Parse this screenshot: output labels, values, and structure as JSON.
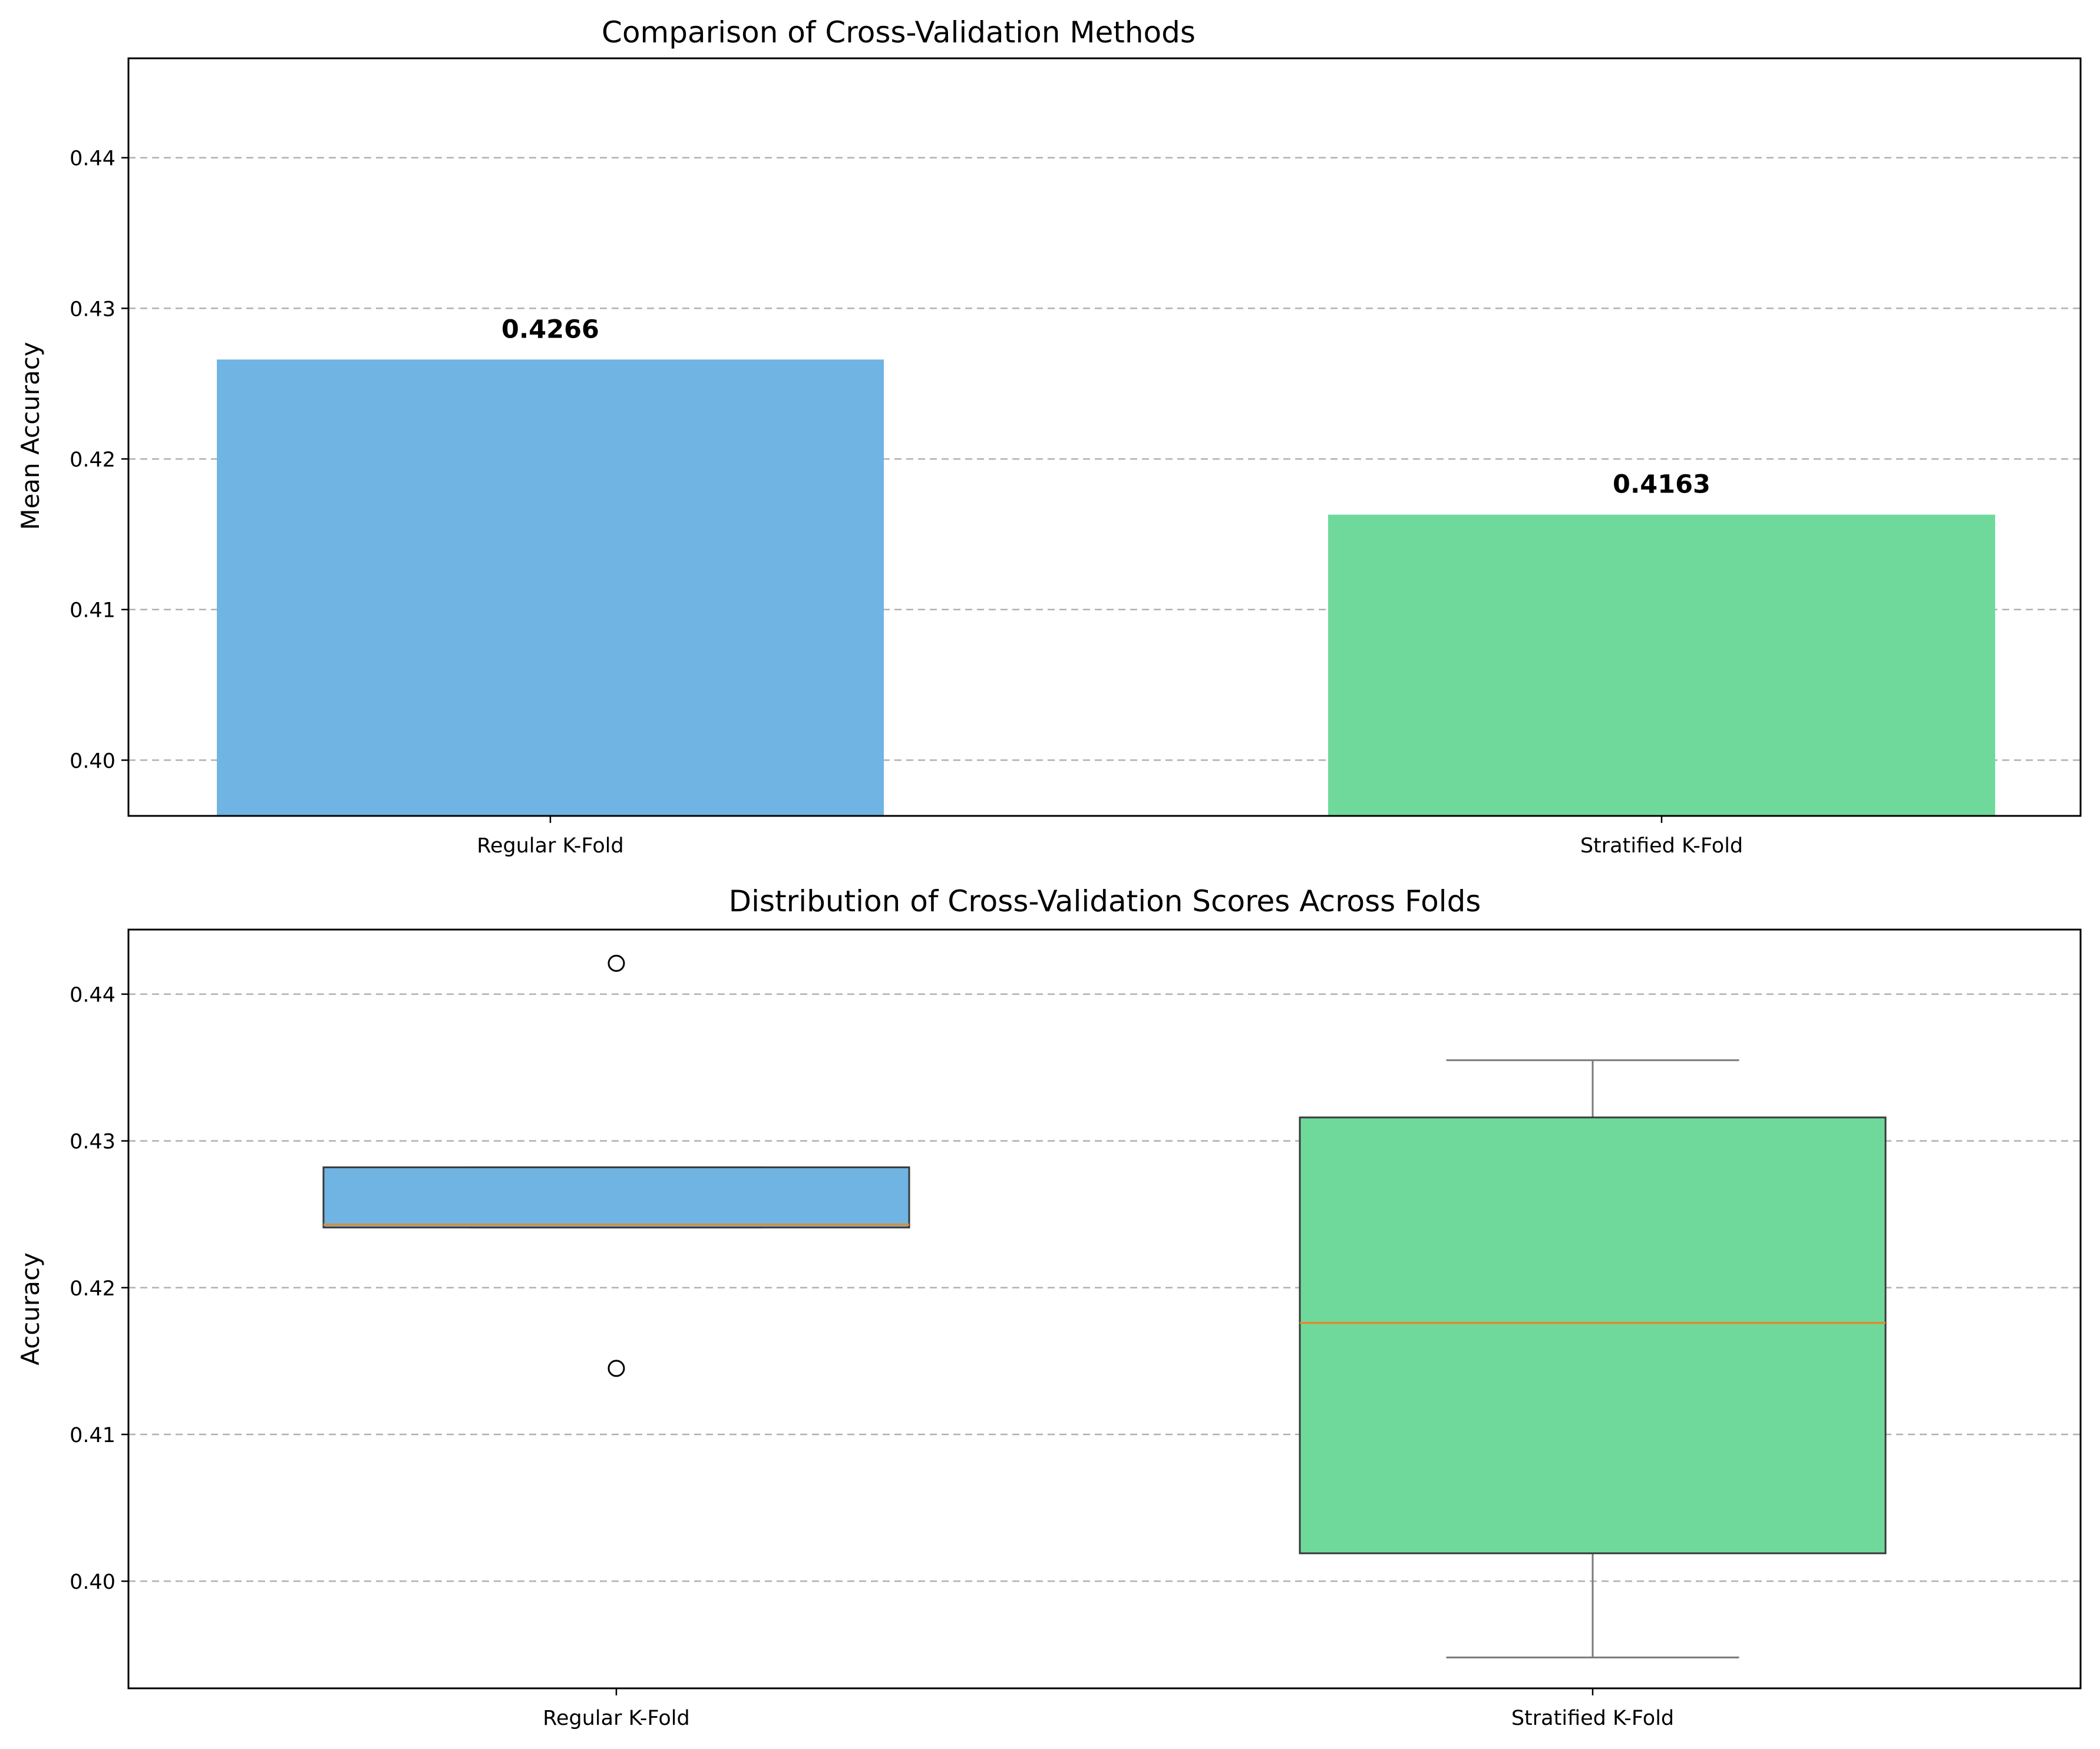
{
  "chart_data": [
    {
      "type": "bar",
      "title": "Comparison of Cross-Validation Methods",
      "xlabel": "",
      "ylabel": "Mean Accuracy",
      "categories": [
        "Regular K-Fold",
        "Stratified K-Fold"
      ],
      "values": [
        0.4266,
        0.4163
      ],
      "value_labels": [
        "0.4266",
        "0.4163"
      ],
      "colors": [
        "#6fb4e2",
        "#6fd99b"
      ],
      "ylim": [
        0.3963,
        0.4466
      ],
      "yticks": [
        0.4,
        0.41,
        0.42,
        0.43,
        0.44
      ],
      "ytick_labels": [
        "0.40",
        "0.41",
        "0.42",
        "0.43",
        "0.44"
      ],
      "grid": "y-dashed",
      "legend": "none"
    },
    {
      "type": "box",
      "title": "Distribution of Cross-Validation Scores Across Folds",
      "xlabel": "",
      "ylabel": "Accuracy",
      "categories": [
        "Regular K-Fold",
        "Stratified K-Fold"
      ],
      "boxes": [
        {
          "whisker_low": 0.4241,
          "q1": 0.4241,
          "median": 0.4243,
          "q3": 0.4282,
          "whisker_high": 0.4282,
          "outliers": [
            0.4421,
            0.4145
          ]
        },
        {
          "whisker_low": 0.3948,
          "q1": 0.4019,
          "median": 0.4176,
          "q3": 0.4316,
          "whisker_high": 0.4355,
          "outliers": []
        }
      ],
      "colors": [
        "#6fb4e2",
        "#6fd99b"
      ],
      "median_color": "#e08a2e",
      "ylim": [
        0.3927,
        0.4444
      ],
      "yticks": [
        0.4,
        0.41,
        0.42,
        0.43,
        0.44
      ],
      "ytick_labels": [
        "0.40",
        "0.41",
        "0.42",
        "0.43",
        "0.44"
      ],
      "grid": "y-dashed",
      "legend": "none"
    }
  ]
}
